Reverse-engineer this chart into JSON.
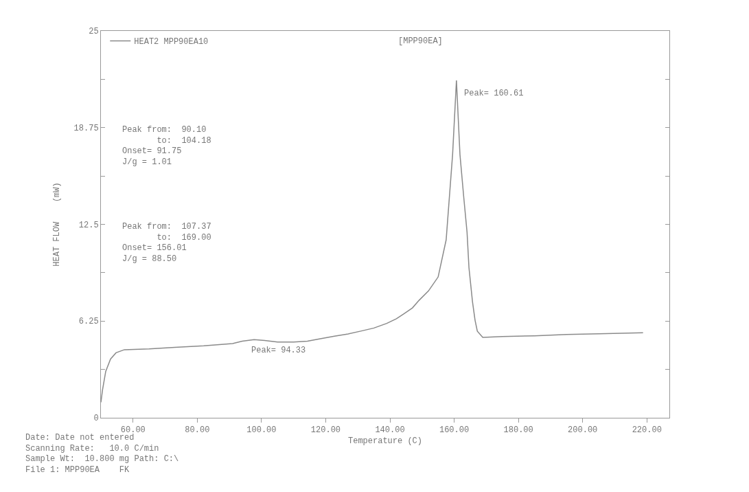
{
  "chart_data": {
    "type": "line",
    "xlabel": "Temperature (C)",
    "ylabel": "HEAT FLOW    (mW)",
    "series": [
      {
        "name": "HEAT2 MPP90EA10",
        "color": "#8a8a8a",
        "x": [
          50,
          50.5,
          51.5,
          53,
          54.7,
          57.3,
          65,
          73,
          82,
          91,
          94,
          97.7,
          101,
          105,
          110,
          114.3,
          118,
          122.7,
          127,
          130.9,
          135,
          139,
          142,
          144.2,
          147,
          149.1,
          152,
          155,
          157.5,
          159.5,
          160.7,
          161.8,
          163,
          164,
          164.6,
          165.7,
          166.5,
          167.2,
          168.9,
          175,
          185,
          195,
          205,
          218.8
        ],
        "values": [
          1.0,
          1.8,
          3.0,
          3.8,
          4.2,
          4.4,
          4.45,
          4.55,
          4.65,
          4.8,
          4.95,
          5.05,
          5.0,
          4.9,
          4.9,
          4.95,
          5.1,
          5.27,
          5.42,
          5.6,
          5.8,
          6.1,
          6.4,
          6.7,
          7.1,
          7.6,
          8.2,
          9.1,
          11.5,
          17,
          21.8,
          17,
          14.2,
          12,
          9.7,
          7.5,
          6.3,
          5.6,
          5.2,
          5.25,
          5.3,
          5.38,
          5.43,
          5.5
        ]
      }
    ],
    "xlim": [
      50,
      227
    ],
    "xticks": [
      {
        "value": 60,
        "label": "60.00"
      },
      {
        "value": 80,
        "label": "80.00"
      },
      {
        "value": 100,
        "label": "100.00"
      },
      {
        "value": 120,
        "label": "120.00"
      },
      {
        "value": 140,
        "label": "140.00"
      },
      {
        "value": 160,
        "label": "160.00"
      },
      {
        "value": 180,
        "label": "180.00"
      },
      {
        "value": 200,
        "label": "200.00"
      },
      {
        "value": 220,
        "label": "220.00"
      }
    ],
    "ylim": [
      0,
      25
    ],
    "yticks": [
      0,
      {
        "value": 3.125,
        "label": null
      },
      6.25,
      {
        "value": 9.375,
        "label": null
      },
      12.5,
      {
        "value": 15.625,
        "label": null
      },
      18.75,
      {
        "value": 21.875,
        "label": null
      },
      25
    ],
    "grid": false,
    "legend": "top left",
    "marker": "none",
    "line_style": "solid",
    "annotations": [
      {
        "text": "Peak= 160.61",
        "x": 160.61,
        "y": 21.8
      },
      {
        "text": "Peak= 94.33",
        "x": 94.33,
        "y": 5.0
      },
      "[MPP90EA]",
      "Peak from:  90.10\n       to:  104.18\nOnset= 91.75\nJ/g = 1.01",
      "Peak from:  107.37\n       to:  169.00\nOnset= 156.01\nJ/g = 88.50",
      "Date: Date not entered\nScanning Rate:   10.0 C/min\nSample Wt:  10.800 mg Path: C:\\\nFile 1: MPP90EA    FK"
    ]
  }
}
